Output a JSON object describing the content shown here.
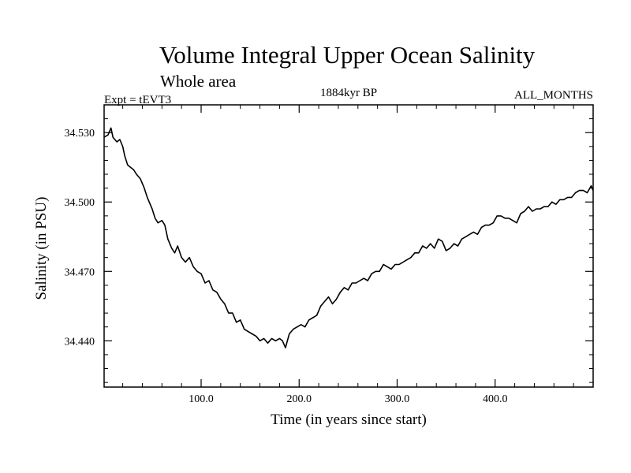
{
  "chart_data": {
    "type": "line",
    "title": "Volume Integral Upper Ocean Salinity",
    "subtitle": "Whole area",
    "left_label": "Expt = tEVT3",
    "center_label": "1884kyr BP",
    "right_label": "ALL_MONTHS",
    "xlabel": "Time (in years since start)",
    "ylabel": "Salinity (in PSU)",
    "xlim": [
      1,
      500
    ],
    "ylim": [
      34.42,
      34.542
    ],
    "xticks": [
      100,
      200,
      300,
      400
    ],
    "xtick_labels": [
      "100.0",
      "200.0",
      "300.0",
      "400.0"
    ],
    "yticks": [
      34.44,
      34.47,
      34.5,
      34.53
    ],
    "ytick_labels": [
      "34.440",
      "34.470",
      "34.500",
      "34.530"
    ],
    "grid": false,
    "series": [
      {
        "name": "Salinity",
        "x": [
          1,
          5,
          8,
          10,
          14,
          17,
          20,
          22,
          25,
          28,
          31,
          34,
          38,
          42,
          45,
          50,
          53,
          56,
          60,
          63,
          66,
          70,
          73,
          76,
          80,
          84,
          88,
          92,
          96,
          100,
          104,
          108,
          112,
          116,
          120,
          124,
          128,
          132,
          136,
          140,
          144,
          148,
          152,
          156,
          160,
          164,
          168,
          172,
          176,
          180,
          183,
          186,
          190,
          194,
          198,
          202,
          206,
          210,
          214,
          218,
          222,
          226,
          230,
          234,
          238,
          242,
          246,
          250,
          254,
          258,
          262,
          266,
          270,
          274,
          278,
          282,
          286,
          290,
          294,
          298,
          302,
          306,
          310,
          314,
          318,
          322,
          326,
          330,
          334,
          338,
          342,
          346,
          350,
          354,
          358,
          362,
          366,
          370,
          374,
          378,
          382,
          386,
          390,
          394,
          398,
          402,
          406,
          410,
          414,
          418,
          422,
          426,
          430,
          434,
          438,
          442,
          446,
          450,
          454,
          458,
          462,
          466,
          470,
          474,
          478,
          482,
          486,
          490,
          494,
          498,
          500
        ],
        "values": [
          34.528,
          34.529,
          34.532,
          34.528,
          34.526,
          34.527,
          34.524,
          34.52,
          34.516,
          34.515,
          34.514,
          34.512,
          34.51,
          34.506,
          34.502,
          34.497,
          34.493,
          34.491,
          34.492,
          34.49,
          34.484,
          34.48,
          34.478,
          34.481,
          34.476,
          34.474,
          34.476,
          34.472,
          34.47,
          34.469,
          34.465,
          34.466,
          34.462,
          34.461,
          34.458,
          34.456,
          34.452,
          34.452,
          34.448,
          34.449,
          34.445,
          34.444,
          34.443,
          34.442,
          34.44,
          34.441,
          34.439,
          34.441,
          34.44,
          34.441,
          34.44,
          34.437,
          34.443,
          34.445,
          34.446,
          34.447,
          34.446,
          34.449,
          34.45,
          34.451,
          34.455,
          34.457,
          34.459,
          34.456,
          34.458,
          34.461,
          34.463,
          34.462,
          34.465,
          34.465,
          34.466,
          34.467,
          34.466,
          34.469,
          34.47,
          34.47,
          34.473,
          34.472,
          34.471,
          34.473,
          34.473,
          34.474,
          34.475,
          34.476,
          34.478,
          34.478,
          34.481,
          34.48,
          34.482,
          34.48,
          34.484,
          34.483,
          34.479,
          34.48,
          34.482,
          34.481,
          34.484,
          34.485,
          34.486,
          34.487,
          34.486,
          34.489,
          34.49,
          34.49,
          34.491,
          34.494,
          34.494,
          34.493,
          34.493,
          34.492,
          34.491,
          34.495,
          34.496,
          34.498,
          34.496,
          34.497,
          34.497,
          34.498,
          34.498,
          34.5,
          34.499,
          34.501,
          34.501,
          34.502,
          34.502,
          34.504,
          34.505,
          34.505,
          34.504,
          34.507,
          34.505
        ]
      }
    ]
  }
}
